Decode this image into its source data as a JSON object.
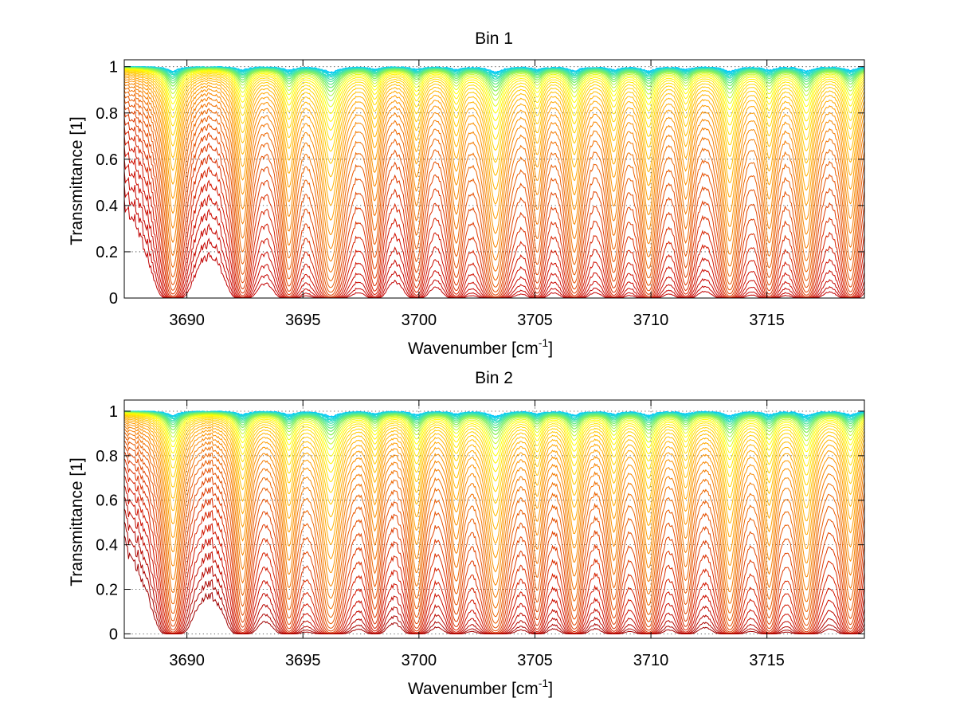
{
  "chart_data": [
    {
      "type": "line",
      "title": "Bin 1",
      "xlabel": "Wavenumber [cm",
      "xlabel_sup": "-1",
      "xlabel_suffix": "]",
      "ylabel": "Transmittance [1]",
      "xlim": [
        3687.3,
        3719.2
      ],
      "ylim": [
        0,
        1.03
      ],
      "xticks": [
        3690,
        3695,
        3700,
        3705,
        3710,
        3715
      ],
      "xtick_labels": [
        "3690",
        "3695",
        "3700",
        "3705",
        "3710",
        "3715"
      ],
      "yticks": [
        0,
        0.2,
        0.4,
        0.6,
        0.8,
        1
      ],
      "ytick_labels": [
        "0",
        "0.2",
        "0.4",
        "0.6",
        "0.8",
        "1"
      ],
      "grid": true,
      "absorption_lines": [
        {
          "x": 3689.4,
          "depth": 0.72,
          "width": 0.3
        },
        {
          "x": 3692.4,
          "depth": 0.55,
          "width": 0.28
        },
        {
          "x": 3694.4,
          "depth": 0.58,
          "width": 0.28
        },
        {
          "x": 3696.2,
          "depth": 0.92,
          "width": 0.38
        },
        {
          "x": 3698.1,
          "depth": 0.38,
          "width": 0.26
        },
        {
          "x": 3699.9,
          "depth": 0.42,
          "width": 0.28
        },
        {
          "x": 3701.6,
          "depth": 0.45,
          "width": 0.28
        },
        {
          "x": 3703.3,
          "depth": 0.9,
          "width": 0.36
        },
        {
          "x": 3705.1,
          "depth": 0.42,
          "width": 0.26
        },
        {
          "x": 3706.7,
          "depth": 0.65,
          "width": 0.3
        },
        {
          "x": 3708.4,
          "depth": 0.5,
          "width": 0.28
        },
        {
          "x": 3709.9,
          "depth": 0.7,
          "width": 0.3
        },
        {
          "x": 3711.5,
          "depth": 0.45,
          "width": 0.28
        },
        {
          "x": 3713.4,
          "depth": 0.82,
          "width": 0.32
        },
        {
          "x": 3715.1,
          "depth": 0.55,
          "width": 0.28
        },
        {
          "x": 3716.7,
          "depth": 0.75,
          "width": 0.32
        },
        {
          "x": 3718.6,
          "depth": 0.62,
          "width": 0.3
        }
      ],
      "curves": 40,
      "colors": [
        "#00c8ff",
        "#30e0c0",
        "#80f060",
        "#ffff00",
        "#ffd000",
        "#ffa000",
        "#f07000",
        "#e04000",
        "#d01000",
        "#c00000"
      ]
    },
    {
      "type": "line",
      "title": "Bin 2",
      "xlabel": "Wavenumber [cm",
      "xlabel_sup": "-1",
      "xlabel_suffix": "]",
      "ylabel": "Transmittance [1]",
      "xlim": [
        3687.3,
        3719.2
      ],
      "ylim": [
        -0.02,
        1.05
      ],
      "xticks": [
        3690,
        3695,
        3700,
        3705,
        3710,
        3715
      ],
      "xtick_labels": [
        "3690",
        "3695",
        "3700",
        "3705",
        "3710",
        "3715"
      ],
      "yticks": [
        0,
        0.2,
        0.4,
        0.6,
        0.8,
        1
      ],
      "ytick_labels": [
        "0",
        "0.2",
        "0.4",
        "0.6",
        "0.8",
        "1"
      ],
      "grid": true,
      "absorption_lines": [
        {
          "x": 3689.4,
          "depth": 0.72,
          "width": 0.3
        },
        {
          "x": 3692.4,
          "depth": 0.6,
          "width": 0.28
        },
        {
          "x": 3694.4,
          "depth": 0.62,
          "width": 0.28
        },
        {
          "x": 3696.2,
          "depth": 0.92,
          "width": 0.38
        },
        {
          "x": 3698.1,
          "depth": 0.4,
          "width": 0.26
        },
        {
          "x": 3699.9,
          "depth": 0.62,
          "width": 0.28
        },
        {
          "x": 3701.6,
          "depth": 0.45,
          "width": 0.28
        },
        {
          "x": 3703.3,
          "depth": 0.9,
          "width": 0.36
        },
        {
          "x": 3705.1,
          "depth": 0.42,
          "width": 0.26
        },
        {
          "x": 3706.7,
          "depth": 0.65,
          "width": 0.3
        },
        {
          "x": 3708.4,
          "depth": 0.5,
          "width": 0.28
        },
        {
          "x": 3709.9,
          "depth": 0.7,
          "width": 0.3
        },
        {
          "x": 3711.5,
          "depth": 0.45,
          "width": 0.28
        },
        {
          "x": 3713.4,
          "depth": 0.82,
          "width": 0.32
        },
        {
          "x": 3715.1,
          "depth": 0.6,
          "width": 0.28
        },
        {
          "x": 3716.7,
          "depth": 0.8,
          "width": 0.32
        },
        {
          "x": 3718.6,
          "depth": 0.65,
          "width": 0.3
        }
      ],
      "curves": 40,
      "colors": [
        "#00c8ff",
        "#30e0c0",
        "#80f060",
        "#ffff00",
        "#ffd000",
        "#ffa000",
        "#f07000",
        "#e04000",
        "#d01000",
        "#a00000"
      ]
    }
  ]
}
